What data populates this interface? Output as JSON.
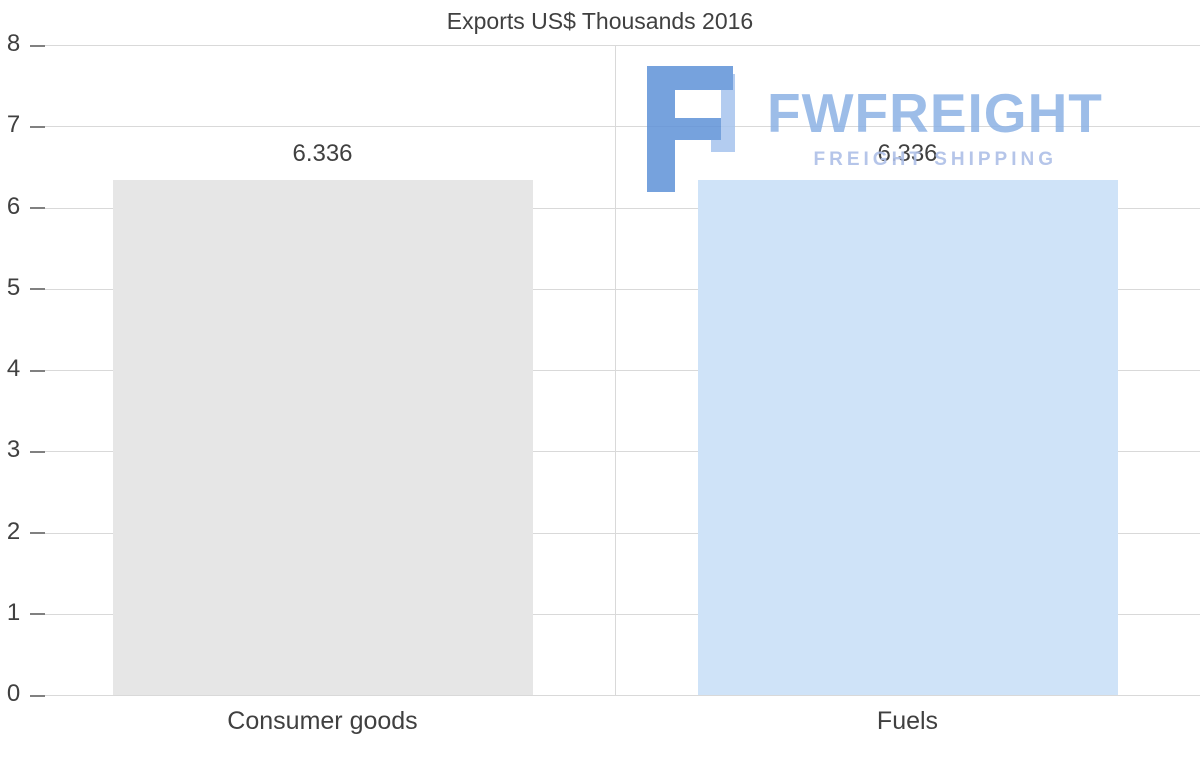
{
  "chart_data": {
    "type": "bar",
    "title": "Exports US$ Thousands 2016",
    "categories": [
      "Consumer goods",
      "Fuels"
    ],
    "values": [
      6.336,
      6.336
    ],
    "value_labels": [
      "6.336",
      "6.336"
    ],
    "bar_colors": [
      "#e6e6e6",
      "#cfe3f8"
    ],
    "xlabel": "",
    "ylabel": "",
    "ylim": [
      0,
      8
    ],
    "yticks": [
      0,
      1,
      2,
      3,
      4,
      5,
      6,
      7,
      8
    ],
    "grid": true,
    "legend": "none"
  },
  "watermark": {
    "name": "FWFREIGHT",
    "subtitle": "FREIGHT SHIPPING",
    "logo_color_primary": "#5f92d8",
    "logo_color_secondary": "#a6c4ee",
    "text_color": "#8cb2e5",
    "subtitle_color": "#aebfe7"
  },
  "colors": {
    "background": "#ffffff",
    "gridline": "#d9d9d9",
    "axis_text": "#404040"
  }
}
